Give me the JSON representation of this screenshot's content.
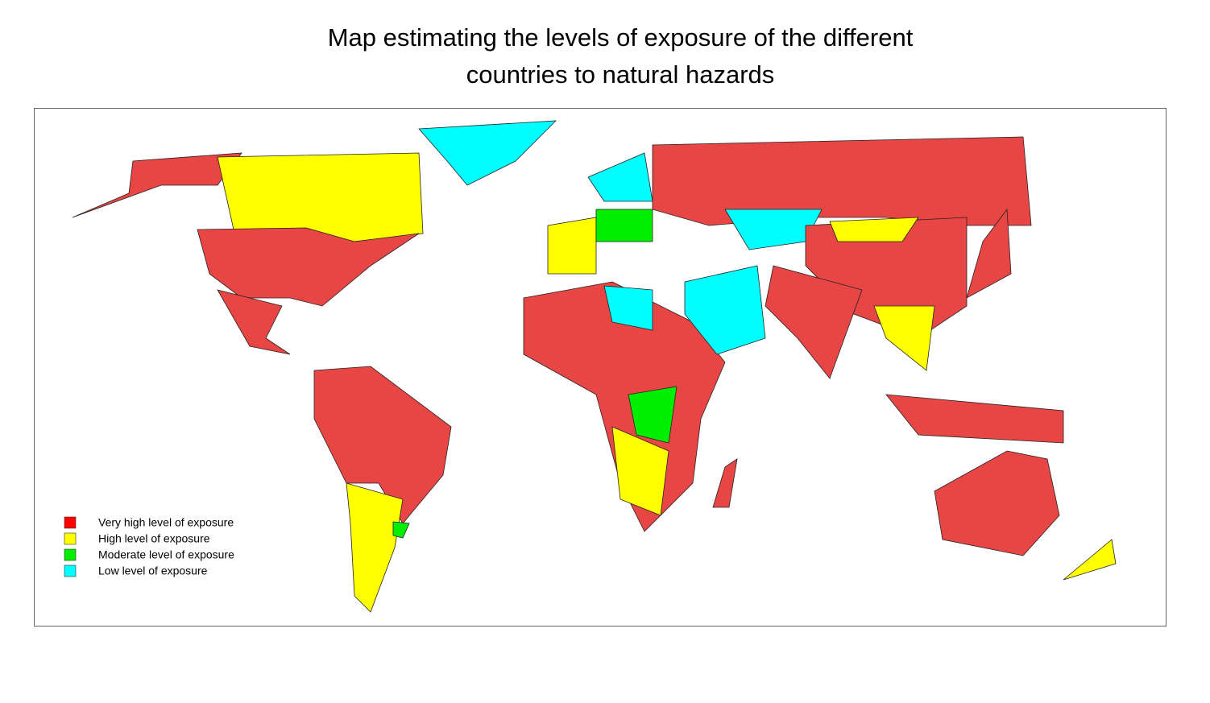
{
  "title": [
    "Map estimating the levels of exposure of  the different",
    "countries to natural hazards"
  ],
  "legend": [
    {
      "label": "Very high level of exposure",
      "color": "#ff0000"
    },
    {
      "label": "High level of exposure",
      "color": "#ffff00"
    },
    {
      "label": "Moderate level of exposure",
      "color": "#00ee00"
    },
    {
      "label": "Low level of exposure",
      "color": "#00ffff"
    }
  ]
}
